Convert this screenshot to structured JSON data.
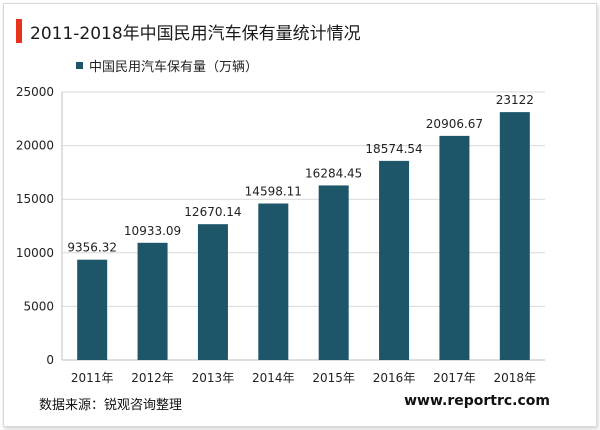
{
  "header": {
    "title": "2011-2018年中国民用汽车保有量统计情况"
  },
  "colors": {
    "accent": "#e8341c",
    "bar": "#1c5668",
    "grid": "#d9d9d9"
  },
  "chart_data": {
    "type": "bar",
    "categories": [
      "2011年",
      "2012年",
      "2013年",
      "2014年",
      "2015年",
      "2016年",
      "2017年",
      "2018年"
    ],
    "series": [
      {
        "name": "中国民用汽车保有量（万辆）",
        "values": [
          9356.32,
          10933.09,
          12670.14,
          14598.11,
          16284.45,
          18574.54,
          20906.67,
          23122
        ],
        "labels": [
          "9356.32",
          "10933.09",
          "12670.14",
          "14598.11",
          "16284.45",
          "18574.54",
          "20906.67",
          "23122"
        ]
      }
    ],
    "ylim": [
      0,
      25000
    ],
    "yticks": [
      "0",
      "5000",
      "10000",
      "15000",
      "20000",
      "25000"
    ],
    "grid": true,
    "legend": "top-left"
  },
  "footer": {
    "source": "数据来源：锐观咨询整理",
    "website": "www.reportrc.com"
  }
}
